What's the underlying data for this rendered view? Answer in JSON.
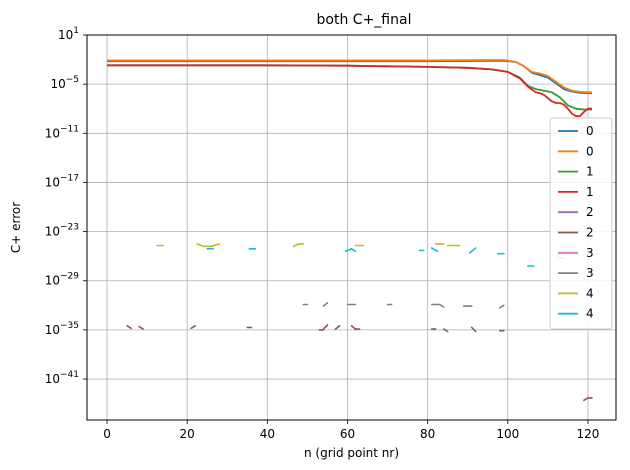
{
  "chart_data": {
    "type": "line",
    "title": "both C+_final",
    "xlabel": "n (grid point nr)",
    "ylabel": "C+ error",
    "xscale": "linear",
    "yscale": "log",
    "xlim": [
      -5,
      127
    ],
    "ylim_log10": [
      -46,
      1
    ],
    "xticks": [
      0,
      20,
      40,
      60,
      80,
      100,
      120
    ],
    "yticks_exp": [
      1,
      -5,
      -11,
      -17,
      -23,
      -29,
      -35,
      -41
    ],
    "grid": true,
    "legend_position": "right",
    "series": [
      {
        "name": "0",
        "color": "#1f77b4",
        "style": "solid",
        "points": [
          [
            0,
            -2.2
          ],
          [
            20,
            -2.2
          ],
          [
            40,
            -2.2
          ],
          [
            60,
            -2.2
          ],
          [
            80,
            -2.2
          ],
          [
            95,
            -2.15
          ],
          [
            99,
            -2.15
          ],
          [
            102,
            -2.3
          ],
          [
            104,
            -2.8
          ],
          [
            106,
            -3.6
          ],
          [
            108,
            -3.9
          ],
          [
            110,
            -4.2
          ],
          [
            112,
            -4.9
          ],
          [
            114,
            -5.6
          ],
          [
            116,
            -5.9
          ],
          [
            118,
            -6.05
          ],
          [
            121,
            -6.1
          ]
        ]
      },
      {
        "name": "0",
        "color": "#ff7f0e",
        "style": "solid",
        "points": [
          [
            0,
            -2.1
          ],
          [
            20,
            -2.1
          ],
          [
            40,
            -2.1
          ],
          [
            60,
            -2.1
          ],
          [
            80,
            -2.1
          ],
          [
            95,
            -2.05
          ],
          [
            99,
            -2.05
          ],
          [
            102,
            -2.3
          ],
          [
            104,
            -2.8
          ],
          [
            106,
            -3.5
          ],
          [
            108,
            -3.7
          ],
          [
            110,
            -4.0
          ],
          [
            112,
            -4.7
          ],
          [
            114,
            -5.4
          ],
          [
            116,
            -5.8
          ],
          [
            118,
            -5.95
          ],
          [
            121,
            -6.0
          ]
        ]
      },
      {
        "name": "1",
        "color": "#2ca02c",
        "style": "solid",
        "points": [
          [
            0,
            -2.7
          ],
          [
            20,
            -2.7
          ],
          [
            40,
            -2.7
          ],
          [
            60,
            -2.75
          ],
          [
            80,
            -2.9
          ],
          [
            90,
            -3.0
          ],
          [
            96,
            -3.2
          ],
          [
            100,
            -3.5
          ],
          [
            103,
            -4.2
          ],
          [
            105,
            -5.2
          ],
          [
            107,
            -5.6
          ],
          [
            109,
            -5.8
          ],
          [
            111,
            -6.0
          ],
          [
            113,
            -6.6
          ],
          [
            115,
            -7.6
          ],
          [
            117,
            -8.0
          ],
          [
            119,
            -8.1
          ],
          [
            121,
            -8.1
          ]
        ]
      },
      {
        "name": "1",
        "color": "#d62728",
        "style": "solid",
        "points": [
          [
            0,
            -2.7
          ],
          [
            20,
            -2.7
          ],
          [
            40,
            -2.7
          ],
          [
            60,
            -2.75
          ],
          [
            80,
            -2.9
          ],
          [
            90,
            -3.0
          ],
          [
            96,
            -3.2
          ],
          [
            100,
            -3.5
          ],
          [
            103,
            -4.3
          ],
          [
            105,
            -5.3
          ],
          [
            107,
            -6.0
          ],
          [
            108,
            -6.1
          ],
          [
            109,
            -6.3
          ],
          [
            110,
            -6.7
          ],
          [
            111,
            -7.1
          ],
          [
            112,
            -7.3
          ],
          [
            113,
            -7.3
          ],
          [
            114,
            -7.5
          ],
          [
            115,
            -8.0
          ],
          [
            116,
            -8.6
          ],
          [
            117,
            -8.9
          ],
          [
            118,
            -8.9
          ],
          [
            119,
            -8.4
          ],
          [
            120,
            -8.0
          ],
          [
            121,
            -8.0
          ]
        ]
      },
      {
        "name": "2",
        "color": "#9467bd",
        "style": "solid",
        "segments": []
      },
      {
        "name": "2",
        "color": "#8c564b",
        "style": "dashes",
        "segments": [
          [
            [
              5,
              -34.5
            ],
            [
              6,
              -34.8
            ]
          ],
          [
            [
              8,
              -34.6
            ],
            [
              9,
              -34.9
            ]
          ],
          [
            [
              21,
              -34.8
            ],
            [
              22,
              -34.5
            ]
          ],
          [
            [
              35,
              -34.7
            ],
            [
              36,
              -34.7
            ]
          ],
          [
            [
              53,
              -35.0
            ],
            [
              54,
              -35.0
            ]
          ],
          [
            [
              54,
              -34.9
            ],
            [
              55,
              -34.4
            ]
          ],
          [
            [
              57,
              -34.9
            ],
            [
              58,
              -34.5
            ]
          ],
          [
            [
              61,
              -34.5
            ],
            [
              62,
              -34.9
            ]
          ],
          [
            [
              62,
              -34.9
            ],
            [
              63,
              -34.9
            ]
          ],
          [
            [
              81,
              -34.9
            ],
            [
              82,
              -34.9
            ]
          ],
          [
            [
              84,
              -34.9
            ],
            [
              85,
              -35.2
            ]
          ],
          [
            [
              91,
              -34.7
            ],
            [
              92,
              -35.2
            ]
          ],
          [
            [
              98,
              -35.1
            ],
            [
              99,
              -35.1
            ]
          ],
          [
            [
              119,
              -43.6
            ],
            [
              120,
              -43.3
            ]
          ],
          [
            [
              120,
              -43.3
            ],
            [
              121,
              -43.3
            ]
          ]
        ]
      },
      {
        "name": "3",
        "color": "#e377c2",
        "style": "solid",
        "segments": []
      },
      {
        "name": "3",
        "color": "#7f7f7f",
        "style": "dashes",
        "segments": [
          [
            [
              49,
              -31.9
            ],
            [
              50,
              -31.9
            ]
          ],
          [
            [
              54,
              -32.1
            ],
            [
              55,
              -31.7
            ]
          ],
          [
            [
              60,
              -31.9
            ],
            [
              62,
              -31.9
            ]
          ],
          [
            [
              70,
              -31.9
            ],
            [
              71,
              -31.9
            ]
          ],
          [
            [
              81,
              -31.9
            ],
            [
              83,
              -31.9
            ]
          ],
          [
            [
              83,
              -31.9
            ],
            [
              84,
              -32.2
            ]
          ],
          [
            [
              89,
              -32.1
            ],
            [
              91,
              -32.1
            ]
          ],
          [
            [
              98,
              -32.3
            ],
            [
              99,
              -32.0
            ]
          ]
        ]
      },
      {
        "name": "4",
        "color": "#bcbd22",
        "style": "dashes",
        "segments": [
          [
            [
              12.5,
              -24.7
            ],
            [
              14,
              -24.7
            ]
          ],
          [
            [
              22.5,
              -24.5
            ],
            [
              24,
              -24.8
            ]
          ],
          [
            [
              24,
              -24.8
            ],
            [
              26,
              -24.8
            ]
          ],
          [
            [
              26,
              -24.8
            ],
            [
              28,
              -24.5
            ]
          ],
          [
            [
              46.5,
              -24.8
            ],
            [
              48,
              -24.5
            ]
          ],
          [
            [
              48,
              -24.5
            ],
            [
              49,
              -24.5
            ]
          ],
          [
            [
              62,
              -24.7
            ],
            [
              64,
              -24.7
            ]
          ],
          [
            [
              82,
              -24.5
            ],
            [
              84,
              -24.5
            ]
          ],
          [
            [
              85,
              -24.7
            ],
            [
              88,
              -24.7
            ]
          ]
        ]
      },
      {
        "name": "4",
        "color": "#17becf",
        "style": "dashes",
        "segments": [
          [
            [
              25,
              -25.1
            ],
            [
              26.5,
              -25.1
            ]
          ],
          [
            [
              35.5,
              -25.1
            ],
            [
              37,
              -25.1
            ]
          ],
          [
            [
              59.5,
              -25.4
            ],
            [
              61,
              -25.1
            ]
          ],
          [
            [
              61,
              -25.1
            ],
            [
              62,
              -25.4
            ]
          ],
          [
            [
              78,
              -25.3
            ],
            [
              79,
              -25.3
            ]
          ],
          [
            [
              81,
              -25.0
            ],
            [
              82.5,
              -25.4
            ]
          ],
          [
            [
              90.5,
              -25.6
            ],
            [
              92,
              -25.0
            ]
          ],
          [
            [
              97.5,
              -25.7
            ],
            [
              99,
              -25.7
            ]
          ],
          [
            [
              105,
              -27.2
            ],
            [
              106.5,
              -27.2
            ]
          ],
          [
            [
              112.5,
              -26.2
            ],
            [
              114,
              -26.2
            ]
          ]
        ]
      }
    ]
  }
}
